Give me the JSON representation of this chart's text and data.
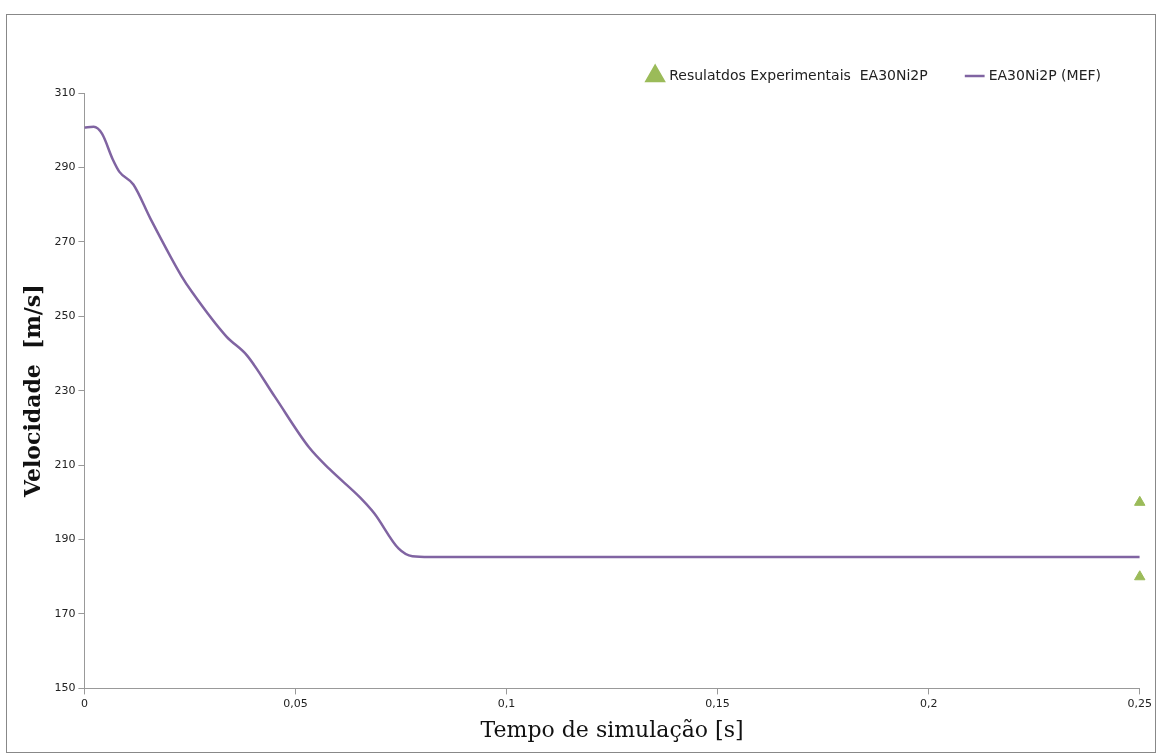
{
  "chart_data": {
    "type": "line",
    "xlabel": "Tempo de simulação [s]",
    "ylabel": "Velocidade  [m/s]",
    "xlim": [
      0,
      0.25
    ],
    "xticks": [
      0,
      {
        "value": 0.05,
        "label": "0,05"
      },
      {
        "value": 0.1,
        "label": "0,1"
      },
      {
        "value": 0.15,
        "label": "0,15"
      },
      {
        "value": 0.2,
        "label": "0,2"
      },
      {
        "value": 0.25,
        "label": "0,25"
      }
    ],
    "ylim": [
      150,
      310
    ],
    "yticks": [
      150,
      170,
      190,
      210,
      230,
      250,
      270,
      290,
      310
    ],
    "grid": false,
    "legend": "top right",
    "marker": "none",
    "line_style": "solid",
    "series": [
      {
        "name": "Resulatdos Experimentais  EA30Ni2P",
        "type": "scatter",
        "marker": "triangle",
        "color": "#9bbb59",
        "x": [
          0.25,
          0.25
        ],
        "values": [
          200,
          180
        ]
      },
      {
        "name": "EA30Ni2P (MEF)",
        "color": "#8064a2",
        "x": [
          0,
          0.0022,
          0.0042,
          0.0067,
          0.0083,
          0.0116,
          0.0157,
          0.023,
          0.0255,
          0.0336,
          0.0385,
          0.0451,
          0.0532,
          0.0581,
          0.0654,
          0.0687,
          0.0744,
          0.0777,
          0.0818,
          0.25
        ],
        "values": [
          300.7,
          300.9,
          299,
          292.2,
          288.8,
          285.4,
          276.1,
          260.8,
          256.5,
          244.6,
          239.5,
          228.4,
          214.8,
          208.9,
          201.2,
          197,
          187.6,
          185.5,
          185.3,
          185.3
        ]
      }
    ]
  }
}
